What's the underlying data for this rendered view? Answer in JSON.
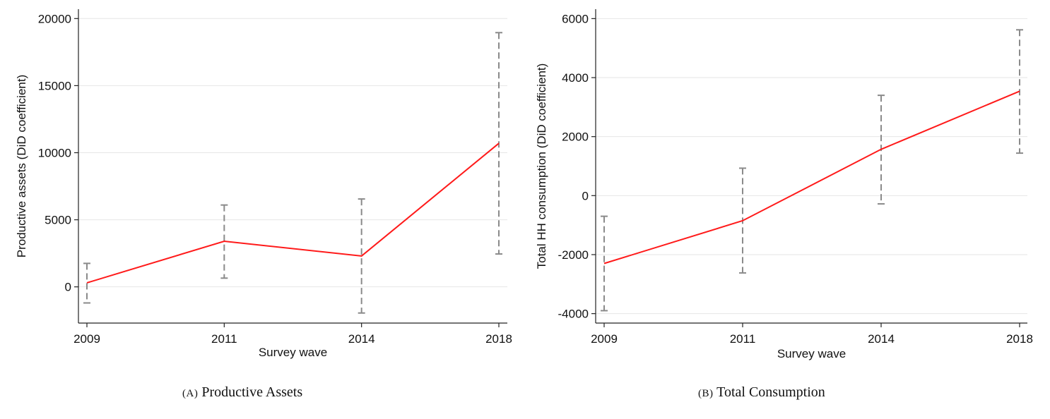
{
  "chart_data": [
    {
      "type": "line",
      "id": "a",
      "caption_label": "(A)",
      "caption_text": "Productive Assets",
      "xlabel": "Survey wave",
      "ylabel": "Productive assets (DiD coefficient)",
      "categories": [
        "2009",
        "2011",
        "2014",
        "2018"
      ],
      "yticks": [
        0,
        5000,
        10000,
        15000,
        20000
      ],
      "ytick_labels": [
        "0",
        "5000",
        "10000",
        "15000",
        "20000"
      ],
      "ylim": [
        -2700,
        20700
      ],
      "grid": true,
      "series": [
        {
          "color": "#ff1a1a",
          "values": [
            300,
            3400,
            2300,
            10700
          ],
          "ci_lower": [
            -1200,
            650,
            -1950,
            2450
          ],
          "ci_upper": [
            1750,
            6100,
            6550,
            18950
          ]
        }
      ]
    },
    {
      "type": "line",
      "id": "b",
      "caption_label": "(B)",
      "caption_text": "Total Consumption",
      "xlabel": "Survey wave",
      "ylabel": "Total HH consumption (DiD coefficient)",
      "categories": [
        "2009",
        "2011",
        "2014",
        "2018"
      ],
      "yticks": [
        -4000,
        -2000,
        0,
        2000,
        4000,
        6000
      ],
      "ytick_labels": [
        "-4000",
        "-2000",
        "0",
        "2000",
        "4000",
        "6000"
      ],
      "ylim": [
        -4320,
        6320
      ],
      "grid": true,
      "series": [
        {
          "color": "#ff1a1a",
          "values": [
            -2300,
            -850,
            1570,
            3540
          ],
          "ci_lower": [
            -3900,
            -2620,
            -280,
            1440
          ],
          "ci_upper": [
            -700,
            930,
            3400,
            5620
          ]
        }
      ]
    }
  ]
}
